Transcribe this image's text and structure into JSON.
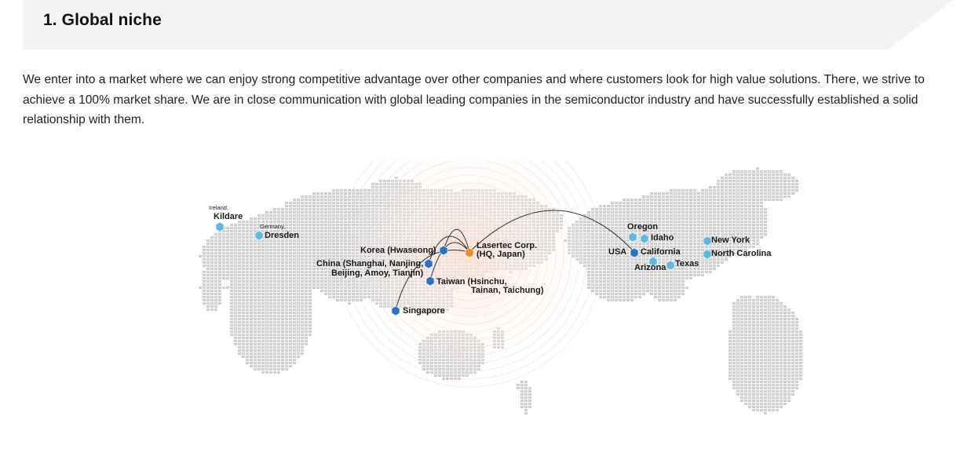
{
  "header": {
    "title": "1. Global niche"
  },
  "intro": {
    "text": "We enter into a market where we can enjoy strong competitive advantage over other companies and where customers look for high value solutions. There, we strive to achieve a 100% market share. We are in close communication with global leading companies in the semiconductor industry and have successfully established a solid relationship with them."
  },
  "map": {
    "colors": {
      "land": "#cfcfcf",
      "hq": "#f08a24",
      "site": "#2f6fc4",
      "site_light": "#5fb8e0",
      "rings": "#f2c9b8",
      "route": "#333333"
    },
    "labels": {
      "ireland_country": "Ireland,",
      "ireland_city": "Kildare",
      "germany_country": "Germany,",
      "germany_city": "Dresden",
      "korea": "Korea (Hwaseong)",
      "china_1": "China (Shanghai, Nanjing,",
      "china_2": "Beijing, Amoy, Tianjin)",
      "taiwan_1": "Taiwan (Hsinchu,",
      "taiwan_2": "Tainan, Taichung)",
      "singapore": "Singapore",
      "hq_1": "Lasertec Corp.",
      "hq_2": "(HQ, Japan)",
      "oregon": "Oregon",
      "idaho": "Idaho",
      "usa": "USA",
      "california": "California",
      "arizona": "Arizona",
      "texas": "Texas",
      "new_york": "New York",
      "north_carolina": "North Carolina"
    }
  }
}
